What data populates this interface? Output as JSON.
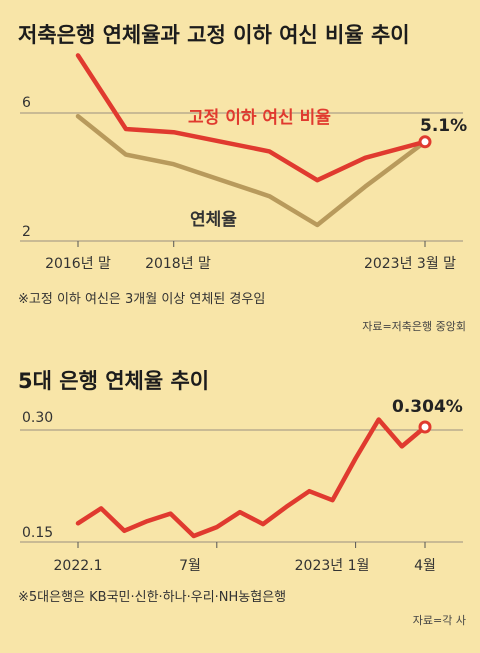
{
  "colors": {
    "background": "#f8e5a8",
    "red": "#e03a2f",
    "brown": "#b89a5c",
    "grid": "#9a9080"
  },
  "chart_data": [
    {
      "type": "line",
      "title": "저축은행 연체율과 고정 이하 여신 비율 추이",
      "x_labels": [
        "2016년 말",
        "2018년 말",
        "2023년 3월 말"
      ],
      "y_ticks": [
        "6",
        "2"
      ],
      "ylim": [
        2,
        6
      ],
      "series": [
        {
          "name": "고정 이하 여신 비율",
          "color": "#e03a2f",
          "x": [
            2016,
            2017,
            2018,
            2019,
            2020,
            2021,
            2022,
            2023.25
          ],
          "values": [
            7.8,
            5.5,
            5.4,
            5.1,
            4.8,
            3.9,
            4.6,
            5.1
          ]
        },
        {
          "name": "연체율",
          "color": "#b89a5c",
          "x": [
            2016,
            2017,
            2018,
            2019,
            2020,
            2021,
            2022,
            2023.25
          ],
          "values": [
            5.9,
            4.7,
            4.4,
            3.9,
            3.4,
            2.5,
            3.7,
            5.1
          ]
        }
      ],
      "end_label": "5.1%",
      "note": "※고정 이하 여신은 3개월 이상 연체된 경우임",
      "source": "자료=저축은행 중앙회"
    },
    {
      "type": "line",
      "title": "5대 은행 연체율 추이",
      "x_labels": [
        "2022.1",
        "7월",
        "2023년 1월",
        "4월"
      ],
      "y_ticks": [
        "0.30",
        "0.15"
      ],
      "ylim": [
        0.15,
        0.3
      ],
      "series": [
        {
          "name": "5대 은행 연체율",
          "color": "#e03a2f",
          "x": [
            "2022.1",
            "2022.2",
            "2022.3",
            "2022.4",
            "2022.5",
            "2022.6",
            "2022.7",
            "2022.8",
            "2022.9",
            "2022.10",
            "2022.11",
            "2022.12",
            "2023.1",
            "2023.2",
            "2023.3",
            "2023.4"
          ],
          "values": [
            0.175,
            0.195,
            0.165,
            0.178,
            0.188,
            0.158,
            0.17,
            0.19,
            0.174,
            0.197,
            0.218,
            0.206,
            0.262,
            0.314,
            0.278,
            0.304
          ]
        }
      ],
      "end_label": "0.304%",
      "note": "※5대은행은 KB국민·신한·하나·우리·NH농협은행",
      "source": "자료=각 사"
    }
  ]
}
